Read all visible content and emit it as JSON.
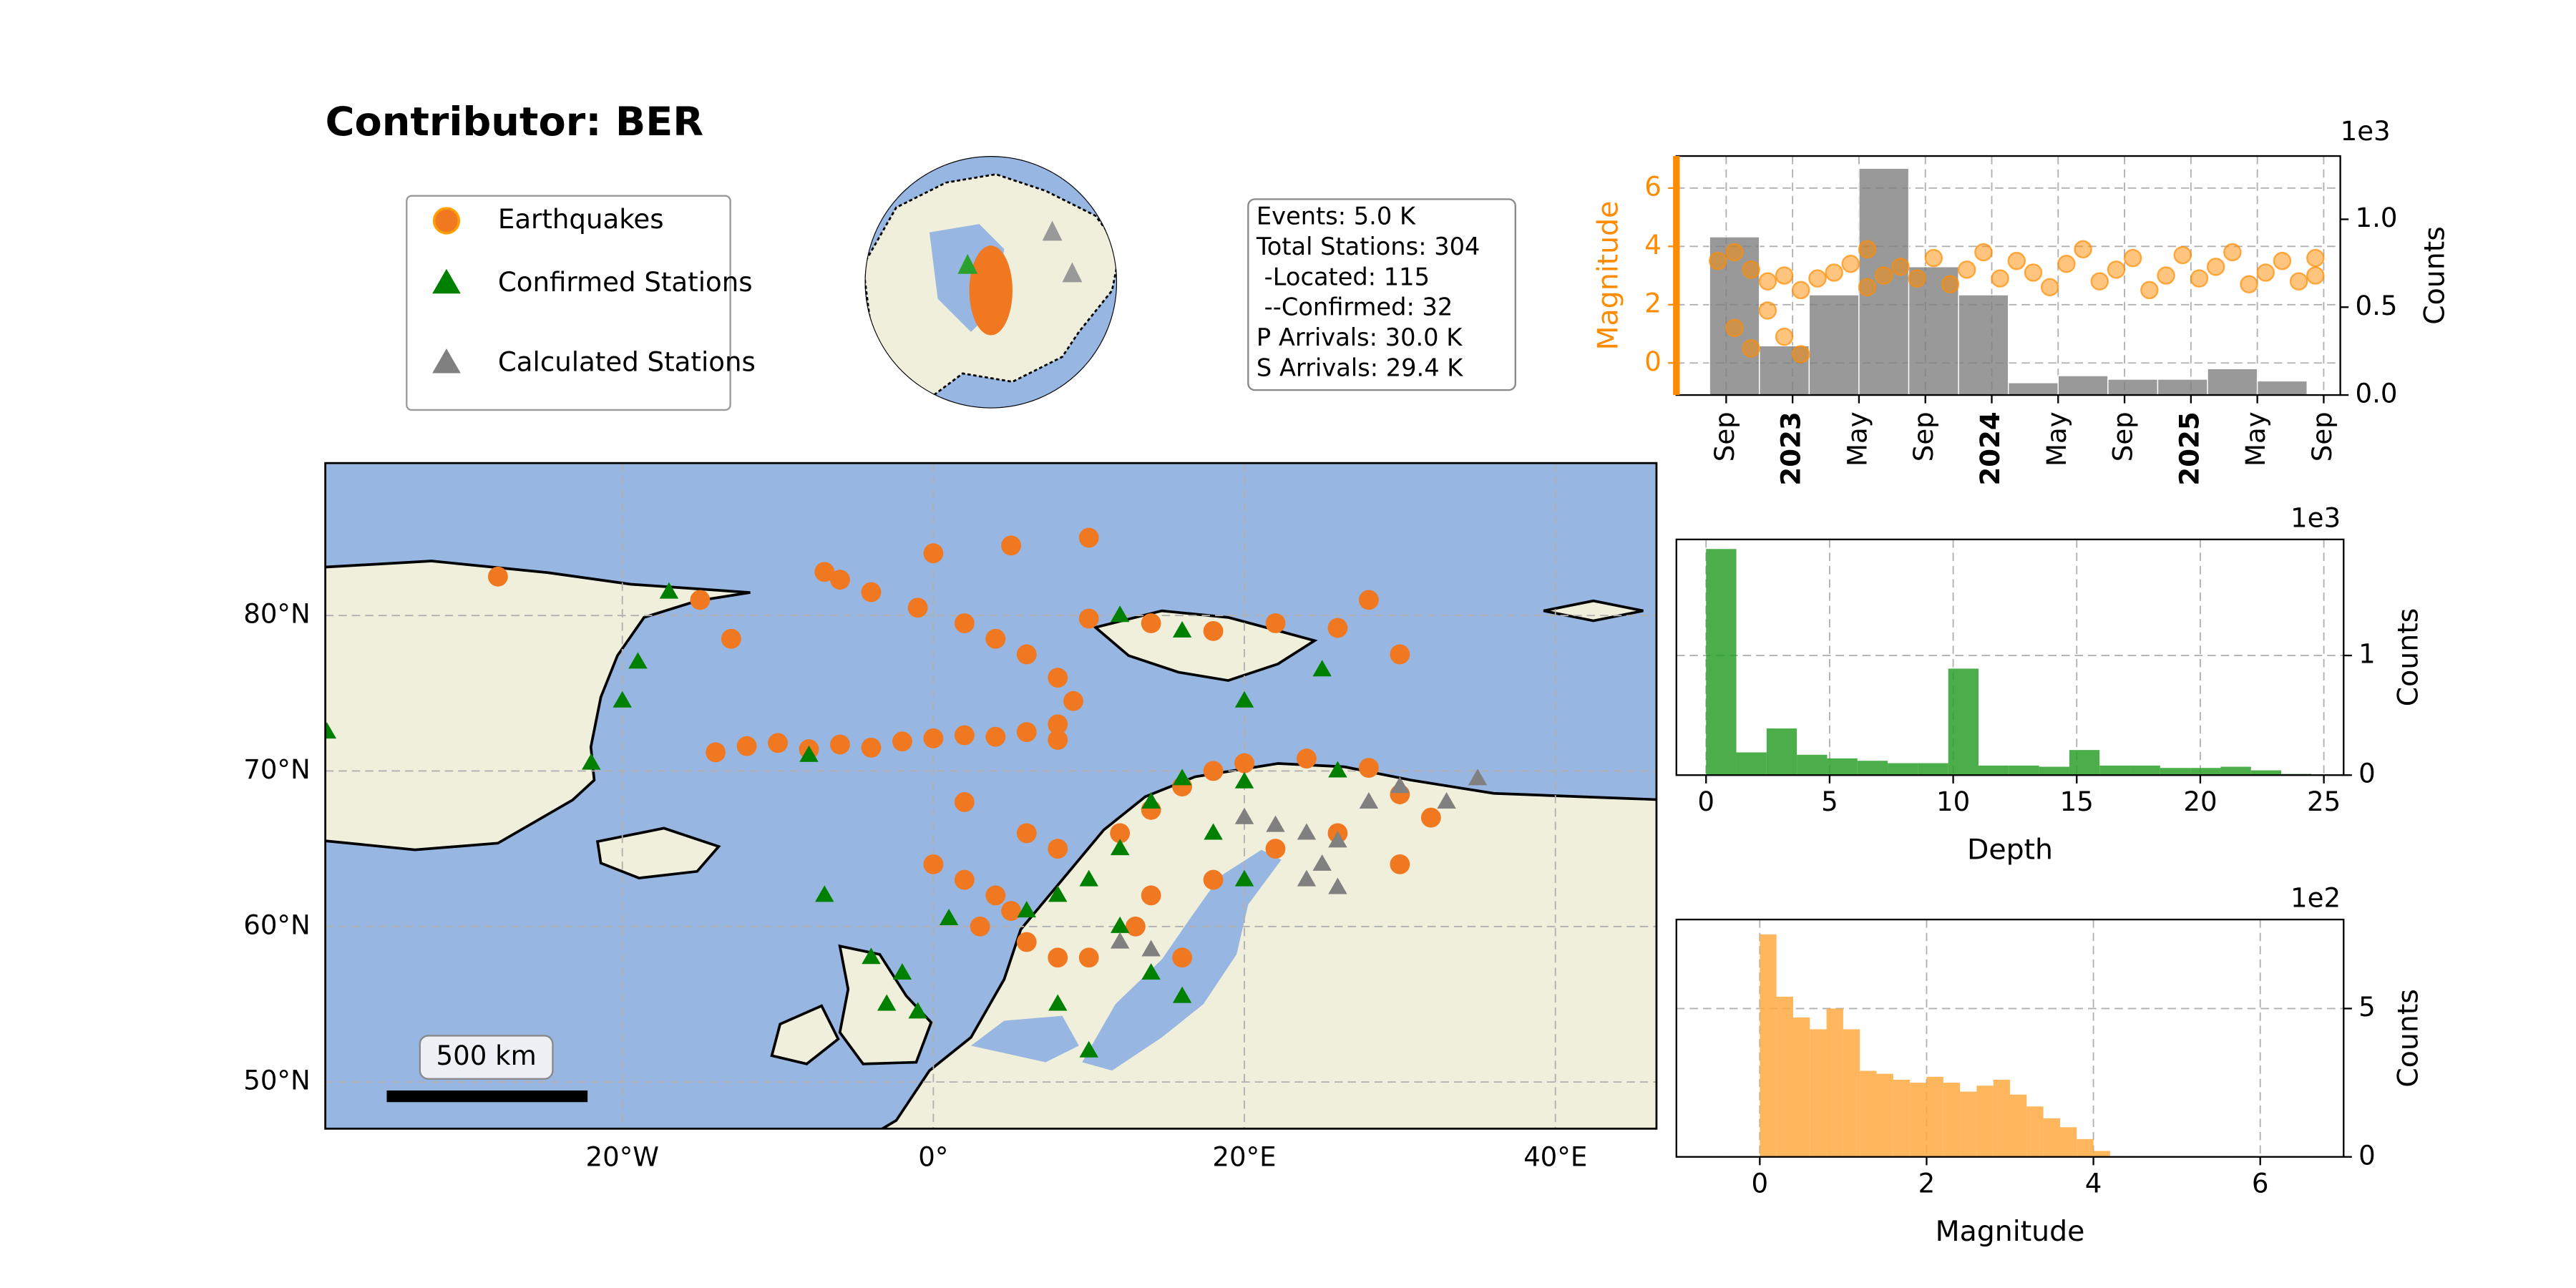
{
  "title": "Contributor: BER",
  "stats": [
    "Events: 5.0 K",
    "Total Stations: 304",
    " -Located: 115",
    " --Confirmed: 32",
    "P Arrivals: 30.0 K",
    "S Arrivals: 29.4 K"
  ],
  "chart_data": [
    {
      "type": "map",
      "xlim": [
        -39.1,
        46.5
      ],
      "ylim": [
        47,
        89.8
      ],
      "xticks": [
        {
          "value": -20,
          "label": "20°W"
        },
        {
          "value": 0,
          "label": "0°"
        },
        {
          "value": 20,
          "label": "20°E"
        },
        {
          "value": 40,
          "label": "40°E"
        }
      ],
      "yticks": [
        {
          "value": 50,
          "label": "50°N"
        },
        {
          "value": 60,
          "label": "60°N"
        },
        {
          "value": 70,
          "label": "70°N"
        },
        {
          "value": 80,
          "label": "80°N"
        }
      ],
      "grid": true,
      "scale_bar": "500 km",
      "series": [
        {
          "name": "Earthquakes",
          "color": "#f07820",
          "marker": "circle",
          "x": [
            -14,
            -12,
            -10,
            -8,
            -6,
            -4,
            -2,
            0,
            2,
            4,
            6,
            8,
            8,
            9,
            8,
            6,
            4,
            2,
            -1,
            -4,
            -6,
            -7,
            0,
            5,
            10,
            10,
            14,
            18,
            22,
            26,
            30,
            28,
            0,
            2,
            4,
            5,
            3,
            6,
            8,
            10,
            12,
            14,
            16,
            18,
            20,
            24,
            28,
            2,
            6,
            8,
            14,
            18,
            22,
            26,
            30,
            32,
            30,
            13,
            16,
            -28,
            -15,
            -13
          ],
          "y": [
            71.2,
            71.6,
            71.8,
            71.4,
            71.7,
            71.5,
            71.9,
            72.1,
            72.3,
            72.2,
            72.5,
            72.0,
            73,
            74.5,
            76,
            77.5,
            78.5,
            79.5,
            80.5,
            81.5,
            82.3,
            82.8,
            84,
            84.5,
            85,
            79.8,
            79.5,
            79,
            79.5,
            79.2,
            77.5,
            81,
            64,
            63,
            62,
            61,
            60,
            59,
            58,
            58,
            66,
            67.5,
            69,
            70,
            70.5,
            70.8,
            70.2,
            68,
            66,
            65,
            62,
            63,
            65,
            66,
            64,
            67,
            68.5,
            60,
            58,
            82.5,
            81,
            78.5
          ]
        },
        {
          "name": "Confirmed Stations",
          "color": "#008000",
          "marker": "triangle",
          "x": [
            -39,
            -22,
            -20,
            -19,
            -17,
            -8,
            -7,
            -4,
            -2,
            -3,
            -1,
            12,
            16,
            20,
            25,
            6,
            8,
            10,
            12,
            14,
            16,
            20,
            26,
            18,
            20,
            12,
            14,
            16,
            10,
            8,
            1
          ],
          "y": [
            72.5,
            70.5,
            74.5,
            77,
            81.5,
            71,
            62,
            58,
            57,
            55,
            54.5,
            80,
            79,
            74.5,
            76.5,
            61,
            62,
            63,
            65,
            68,
            69.5,
            69.3,
            70,
            66,
            63,
            60,
            57,
            55.5,
            52,
            55,
            60.5
          ]
        },
        {
          "name": "Calculated Stations",
          "color": "#808080",
          "marker": "triangle",
          "x": [
            20,
            22,
            24,
            26,
            28,
            30,
            35,
            24,
            26,
            12,
            14,
            33,
            25
          ],
          "y": [
            67,
            66.5,
            66,
            65.5,
            68,
            69,
            69.5,
            63,
            62.5,
            59,
            58.5,
            68,
            64
          ]
        }
      ]
    },
    {
      "type": "timeline",
      "ylabel": "Magnitude",
      "y2label": "Counts",
      "y2_offset_label": "1e3",
      "xlim": [
        "2022-06",
        "2025-10"
      ],
      "xticks": [
        {
          "value": "2022-09",
          "label": "Sep"
        },
        {
          "value": "2023-01",
          "label": "2023"
        },
        {
          "value": "2023-05",
          "label": "May"
        },
        {
          "value": "2023-09",
          "label": "Sep"
        },
        {
          "value": "2024-01",
          "label": "2024"
        },
        {
          "value": "2024-05",
          "label": "May"
        },
        {
          "value": "2024-09",
          "label": "Sep"
        },
        {
          "value": "2025-01",
          "label": "2025"
        },
        {
          "value": "2025-05",
          "label": "May"
        },
        {
          "value": "2025-09",
          "label": "Sep"
        }
      ],
      "ylim": [
        -1.1,
        7.1
      ],
      "yticks": [
        0,
        2,
        4,
        6
      ],
      "y2lim": [
        0,
        1.36
      ],
      "y2ticks": [
        {
          "value": 0,
          "label": "0.0"
        },
        0.5,
        {
          "value": 1,
          "label": "1.0"
        }
      ],
      "grid": true,
      "scatter": {
        "color": "#ff8c00",
        "x": [
          "2022-08",
          "2022-09",
          "2022-09",
          "2022-10",
          "2022-10",
          "2022-11",
          "2022-11",
          "2022-12",
          "2022-12",
          "2023-01",
          "2023-01",
          "2023-02",
          "2023-03",
          "2023-04",
          "2023-05",
          "2023-05",
          "2023-06",
          "2023-07",
          "2023-08",
          "2023-09",
          "2023-10",
          "2023-11",
          "2023-12",
          "2024-01",
          "2024-02",
          "2024-03",
          "2024-04",
          "2024-05",
          "2024-06",
          "2024-07",
          "2024-08",
          "2024-09",
          "2024-10",
          "2024-11",
          "2024-12",
          "2025-01",
          "2025-02",
          "2025-03",
          "2025-04",
          "2025-05",
          "2025-06",
          "2025-07",
          "2025-08",
          "2025-08"
        ],
        "values": [
          3.5,
          3.8,
          1.2,
          3.2,
          0.5,
          2.8,
          1.8,
          3.0,
          0.9,
          2.5,
          0.3,
          2.9,
          3.1,
          3.4,
          3.9,
          2.6,
          3.0,
          3.3,
          2.9,
          3.6,
          2.7,
          3.2,
          3.8,
          2.9,
          3.5,
          3.1,
          2.6,
          3.4,
          3.9,
          2.8,
          3.2,
          3.6,
          2.5,
          3.0,
          3.7,
          2.9,
          3.3,
          3.8,
          2.7,
          3.1,
          3.5,
          2.8,
          3.6,
          3.0
        ]
      },
      "histogram": {
        "color": "#808080",
        "axis": "y2",
        "bins": [
          "2022-08",
          "2022-11",
          "2023-02",
          "2023-05",
          "2023-08",
          "2023-11",
          "2024-02",
          "2024-05",
          "2024-08",
          "2024-11",
          "2025-02",
          "2025-05",
          "2025-08"
        ],
        "counts": [
          0.9,
          0.28,
          0.57,
          1.29,
          0.73,
          0.57,
          0.07,
          0.11,
          0.09,
          0.09,
          0.15,
          0.08
        ]
      }
    },
    {
      "type": "histogram",
      "xlabel": "Depth",
      "ylabel": "Counts",
      "offset_label": "1e3",
      "color": "#2ca02c",
      "bins": [
        0,
        1.225,
        2.45,
        3.675,
        4.9,
        6.125,
        7.35,
        8.575,
        9.8,
        11.025,
        12.25,
        13.475,
        14.7,
        15.925,
        17.15,
        18.375,
        19.6,
        20.825,
        22.05,
        23.275,
        24.5
      ],
      "counts": [
        1.89,
        0.19,
        0.39,
        0.17,
        0.14,
        0.12,
        0.1,
        0.1,
        0.89,
        0.08,
        0.08,
        0.07,
        0.21,
        0.08,
        0.08,
        0.06,
        0.06,
        0.07,
        0.04,
        0.01
      ],
      "xlim": [
        -1.2,
        25.8
      ],
      "xticks": [
        0,
        5,
        10,
        15,
        20,
        25
      ],
      "ylim": [
        0,
        1.97
      ],
      "yticks": [
        0,
        1
      ],
      "grid": true
    },
    {
      "type": "histogram",
      "xlabel": "Magnitude",
      "ylabel": "Counts",
      "offset_label": "1e2",
      "color": "#ffa940",
      "bins": [
        0,
        0.2,
        0.4,
        0.6,
        0.8,
        1.0,
        1.2,
        1.4,
        1.6,
        1.8,
        2.0,
        2.2,
        2.4,
        2.6,
        2.8,
        3.0,
        3.2,
        3.4,
        3.6,
        3.8,
        4.0,
        4.2
      ],
      "counts": [
        7.5,
        5.4,
        4.7,
        4.3,
        5.0,
        4.3,
        2.9,
        2.8,
        2.6,
        2.5,
        2.7,
        2.5,
        2.2,
        2.4,
        2.6,
        2.1,
        1.7,
        1.3,
        1.0,
        0.6,
        0.2
      ],
      "xlim": [
        -1,
        7
      ],
      "xticks": [
        0,
        2,
        4,
        6
      ],
      "ylim": [
        0,
        8
      ],
      "yticks": [
        0,
        5
      ],
      "grid": true
    }
  ]
}
